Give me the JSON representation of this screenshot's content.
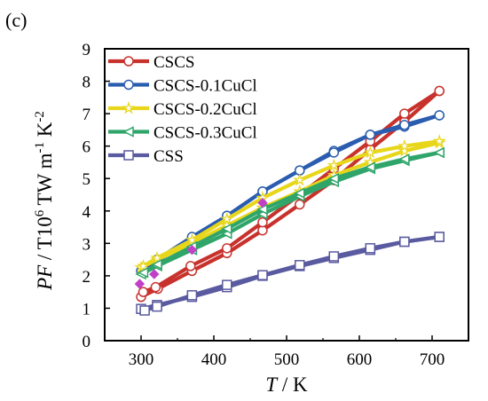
{
  "panel_label": "(c)",
  "chart_data": {
    "type": "line",
    "title": "",
    "xlabel": {
      "italic": "T",
      "rest": " / K"
    },
    "ylabel": {
      "italic": "PF",
      "rest_before_sup": " / T10",
      "sup1": "6",
      "mid": " TW m",
      "sup2": "-1",
      "mid2": " K",
      "sup3": "-2"
    },
    "xlim": [
      250,
      750
    ],
    "ylim": [
      0,
      9
    ],
    "xticks": [
      300,
      400,
      500,
      600,
      700
    ],
    "yticks": [
      0,
      1,
      2,
      3,
      4,
      5,
      6,
      7,
      8,
      9
    ],
    "legend_position": "top-left",
    "grid": false,
    "series": [
      {
        "name": "CSCS",
        "color": "#c8322d",
        "marker": "circle",
        "points": [
          [
            300,
            1.35
          ],
          [
            323,
            1.6
          ],
          [
            370,
            2.15
          ],
          [
            418,
            2.7
          ],
          [
            467,
            3.4
          ],
          [
            518,
            4.2
          ],
          [
            565,
            4.95
          ],
          [
            615,
            5.9
          ],
          [
            662,
            6.75
          ],
          [
            710,
            7.7
          ]
        ],
        "points_b": [
          [
            303,
            1.5
          ],
          [
            320,
            1.65
          ],
          [
            368,
            2.3
          ],
          [
            418,
            2.85
          ],
          [
            467,
            3.65
          ],
          [
            518,
            4.5
          ],
          [
            565,
            5.3
          ],
          [
            615,
            6.15
          ],
          [
            662,
            7.0
          ],
          [
            710,
            7.7
          ]
        ]
      },
      {
        "name": "CSCS-0.1CuCl",
        "color": "#2a5db0",
        "marker": "circle",
        "points": [
          [
            300,
            2.15
          ],
          [
            322,
            2.45
          ],
          [
            370,
            3.15
          ],
          [
            418,
            3.85
          ],
          [
            467,
            4.6
          ],
          [
            518,
            5.25
          ],
          [
            565,
            5.85
          ],
          [
            615,
            6.35
          ],
          [
            662,
            6.6
          ],
          [
            710,
            6.95
          ]
        ],
        "points_b": [
          [
            303,
            2.25
          ],
          [
            322,
            2.5
          ],
          [
            370,
            3.2
          ],
          [
            418,
            3.85
          ],
          [
            467,
            4.6
          ],
          [
            518,
            5.25
          ],
          [
            565,
            5.8
          ],
          [
            615,
            6.35
          ],
          [
            662,
            6.65
          ],
          [
            710,
            6.95
          ]
        ]
      },
      {
        "name": "CSCS-0.2CuCl",
        "color": "#e8d61a",
        "marker": "star",
        "points": [
          [
            300,
            2.25
          ],
          [
            322,
            2.5
          ],
          [
            370,
            3.0
          ],
          [
            418,
            3.55
          ],
          [
            467,
            4.1
          ],
          [
            518,
            4.6
          ],
          [
            565,
            5.1
          ],
          [
            615,
            5.5
          ],
          [
            662,
            5.85
          ],
          [
            710,
            6.1
          ]
        ],
        "points_b": [
          [
            303,
            2.3
          ],
          [
            322,
            2.55
          ],
          [
            370,
            3.1
          ],
          [
            418,
            3.75
          ],
          [
            467,
            4.4
          ],
          [
            518,
            4.95
          ],
          [
            565,
            5.4
          ],
          [
            615,
            5.8
          ],
          [
            662,
            6.0
          ],
          [
            710,
            6.15
          ]
        ]
      },
      {
        "name": "CSCS-0.3CuCl",
        "color": "#2fa56a",
        "marker": "triangle-left",
        "points": [
          [
            300,
            2.05
          ],
          [
            322,
            2.3
          ],
          [
            370,
            2.8
          ],
          [
            418,
            3.3
          ],
          [
            467,
            3.9
          ],
          [
            518,
            4.45
          ],
          [
            565,
            4.9
          ],
          [
            615,
            5.3
          ],
          [
            662,
            5.55
          ],
          [
            710,
            5.8
          ]
        ],
        "points_b": [
          [
            303,
            2.1
          ],
          [
            322,
            2.35
          ],
          [
            370,
            2.9
          ],
          [
            418,
            3.45
          ],
          [
            467,
            4.05
          ],
          [
            518,
            4.55
          ],
          [
            565,
            5.0
          ],
          [
            615,
            5.35
          ],
          [
            662,
            5.6
          ],
          [
            710,
            5.8
          ]
        ]
      },
      {
        "name": "CSS",
        "color": "#5a5aa0",
        "marker": "square",
        "points": [
          [
            300,
            0.98
          ],
          [
            322,
            1.1
          ],
          [
            370,
            1.35
          ],
          [
            418,
            1.65
          ],
          [
            467,
            2.0
          ],
          [
            518,
            2.3
          ],
          [
            565,
            2.55
          ],
          [
            615,
            2.8
          ],
          [
            662,
            3.05
          ],
          [
            710,
            3.2
          ]
        ],
        "points_b": [
          [
            305,
            0.93
          ],
          [
            322,
            1.05
          ],
          [
            370,
            1.4
          ],
          [
            418,
            1.72
          ],
          [
            467,
            2.02
          ],
          [
            518,
            2.33
          ],
          [
            565,
            2.6
          ],
          [
            615,
            2.85
          ],
          [
            662,
            3.05
          ],
          [
            710,
            3.2
          ]
        ]
      }
    ],
    "stray_markers": [
      {
        "color": "#c040c8",
        "shape": "diamond",
        "point": [
          298,
          1.75
        ]
      },
      {
        "color": "#c040c8",
        "shape": "diamond",
        "point": [
          318,
          2.05
        ]
      },
      {
        "color": "#c040c8",
        "shape": "diamond",
        "point": [
          370,
          2.8
        ]
      },
      {
        "color": "#c040c8",
        "shape": "diamond",
        "point": [
          467,
          4.25
        ]
      }
    ]
  }
}
